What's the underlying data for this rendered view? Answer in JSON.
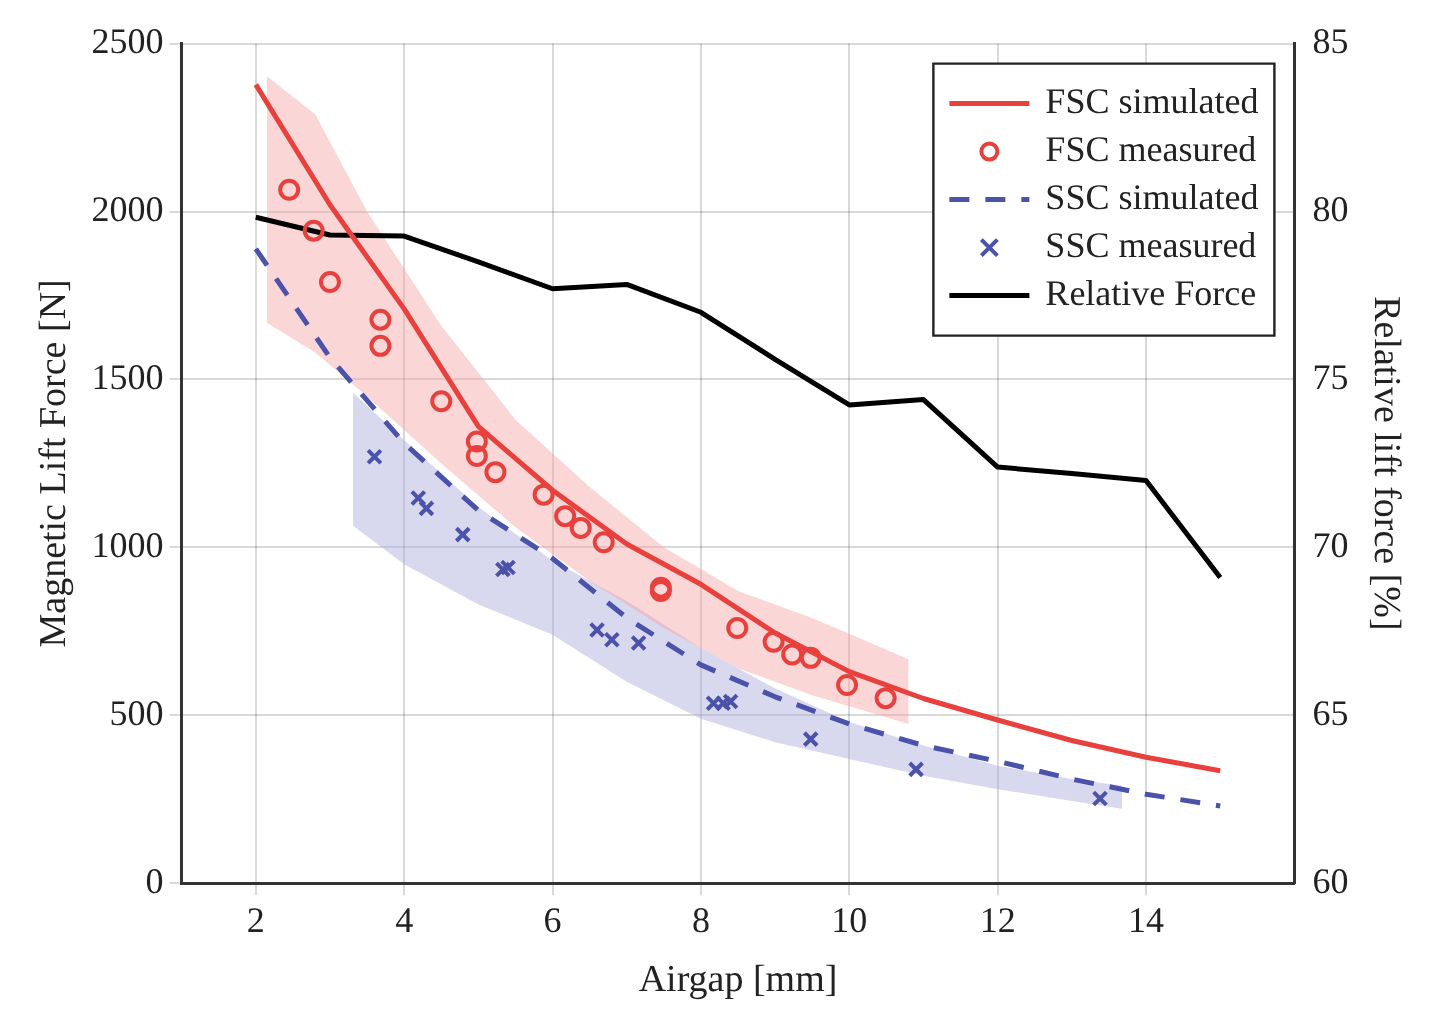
{
  "chart_data": {
    "type": "line",
    "xlabel": "Airgap [mm]",
    "ylabel": "Magnetic Lift Force [N]",
    "y2label": "Relative lift force [%]",
    "xlim": [
      1,
      16
    ],
    "xticks": [
      2,
      4,
      6,
      8,
      10,
      12,
      14
    ],
    "ylim": [
      0,
      2500
    ],
    "yticks": [
      0,
      500,
      1000,
      1500,
      2000,
      2500
    ],
    "y2lim": [
      60,
      85
    ],
    "y2ticks": [
      60,
      65,
      70,
      75,
      80,
      85
    ],
    "grid": true,
    "legend": "top right",
    "series": [
      {
        "type": "line",
        "x": [
          2.15,
          2.8,
          3.5,
          4.5,
          5.5,
          6.5,
          7.5,
          8.5,
          9.5,
          10.8
        ],
        "color": "#f4a3a3",
        "values": [
          null,
          null,
          null,
          null,
          null,
          null,
          null,
          null,
          null,
          null
        ],
        "lower": [
          1669,
          1580,
          1450,
          1250,
          1060,
          900,
          760,
          640,
          560,
          474
        ],
        "upper": [
          2403,
          2290,
          2000,
          1660,
          1380,
          1180,
          1000,
          870,
          790,
          667
        ]
      },
      {
        "type": "line",
        "x": [
          3.31,
          4,
          5,
          6,
          7,
          8,
          9,
          10,
          11,
          12,
          13,
          13.68
        ],
        "color": "#a9a9dc",
        "values": [
          null,
          null,
          null,
          null,
          null,
          null,
          null,
          null,
          null,
          null,
          null,
          null
        ],
        "lower": [
          1064,
          950,
          830,
          740,
          600,
          490,
          420,
          370,
          320,
          280,
          245,
          222
        ],
        "upper": [
          1460,
          1320,
          1120,
          960,
          840,
          700,
          580,
          480,
          410,
          350,
          310,
          290
        ]
      },
      {
        "name": "FSC simulated",
        "type": "line",
        "color": "#e8403c",
        "line_style": "solid",
        "marker": "none",
        "x": [
          2,
          3,
          4,
          5,
          6,
          7,
          8,
          9,
          10,
          11,
          12,
          13,
          14,
          15
        ],
        "values": [
          2378,
          2020,
          1710,
          1360,
          1170,
          1010,
          890,
          745,
          630,
          550,
          486,
          425,
          375,
          335
        ]
      },
      {
        "name": "FSC measured",
        "type": "scatter",
        "color": "#e8403c",
        "marker": "circle",
        "x": [
          2.45,
          2.78,
          3.0,
          3.68,
          3.68,
          4.5,
          4.98,
          4.98,
          5.23,
          5.88,
          6.17,
          6.38,
          6.69,
          7.46,
          7.46,
          8.49,
          8.98,
          9.23,
          9.48,
          9.97,
          10.49
        ],
        "values": [
          2065,
          1943,
          1790,
          1678,
          1600,
          1435,
          1315,
          1272,
          1224,
          1157,
          1093,
          1058,
          1015,
          880,
          870,
          760,
          719,
          681,
          671,
          590,
          551
        ]
      },
      {
        "name": "SSC simulated",
        "type": "line",
        "color": "#4a52aa",
        "line_style": "dashed",
        "marker": "none",
        "x": [
          2,
          3,
          4,
          5,
          6,
          7,
          8,
          9,
          10,
          11,
          12,
          13,
          14,
          15
        ],
        "values": [
          1889,
          1565,
          1310,
          1110,
          967,
          790,
          650,
          555,
          474,
          410,
          363,
          310,
          265,
          230
        ]
      },
      {
        "name": "SSC measured",
        "type": "scatter",
        "color": "#4a52aa",
        "marker": "cross",
        "x": [
          3.6,
          4.19,
          4.3,
          4.79,
          5.33,
          5.4,
          6.6,
          6.8,
          7.16,
          8.17,
          8.3,
          8.4,
          9.48,
          10.9,
          13.38
        ],
        "values": [
          1270,
          1147,
          1116,
          1038,
          934,
          940,
          754,
          725,
          715,
          536,
          536,
          541,
          429,
          339,
          252
        ]
      },
      {
        "name": "Relative Force",
        "type": "line",
        "axis": "y2",
        "color": "#000000",
        "line_style": "solid",
        "marker": "none",
        "x": [
          2,
          3,
          4,
          5,
          6,
          7,
          8,
          9,
          10,
          11,
          12,
          13,
          14,
          15
        ],
        "values": [
          79.83,
          79.3,
          79.27,
          78.5,
          77.7,
          77.83,
          77.0,
          75.6,
          74.24,
          74.4,
          72.39,
          72.2,
          71.99,
          69.1
        ]
      }
    ]
  }
}
